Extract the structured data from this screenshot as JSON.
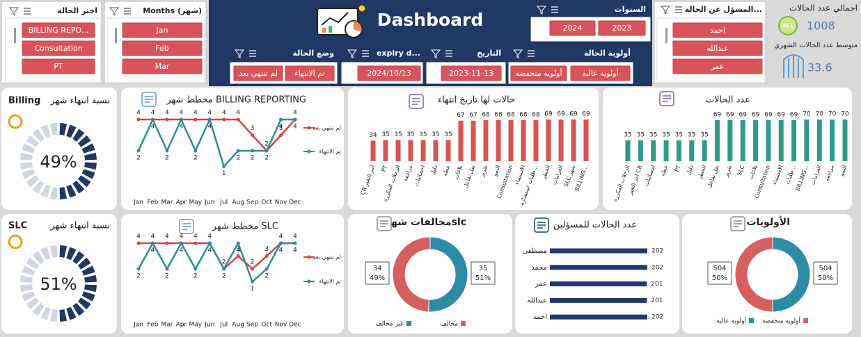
{
  "header": {
    "title": "Dashboard"
  },
  "slicers": [
    {
      "title": "اختر الحالة",
      "items": [
        "BILLING REPO...",
        "Consultation",
        "PT"
      ]
    },
    {
      "title": "Months (شهر)",
      "items": [
        "Jan",
        "Feb",
        "Mar"
      ]
    },
    {
      "title": "السنوات",
      "items": [
        "2024",
        "2023"
      ]
    },
    {
      "title": "وضع الحالة",
      "items": [
        "لم تنتهي بعد",
        "تم الانتهاء"
      ]
    },
    {
      "title": "expiry d...",
      "items": [
        "2024/10/13"
      ]
    },
    {
      "title": "التاريخ",
      "items": [
        "2023-11-13"
      ]
    },
    {
      "title": "أولوية الحالة",
      "items": [
        "أولوية منخفضة",
        "أولوية عالية"
      ]
    },
    {
      "title": "المسؤل عن الحالة...",
      "items": [
        "احمد",
        "عبدالله",
        "عمر"
      ]
    }
  ],
  "kpis": {
    "total_label": "اجمالي عدد الحالات",
    "total": 1008,
    "total_icon": "ALL",
    "average_label": "متوسط عدد الحالات الشهري",
    "average": 33.6
  },
  "chart_data": [
    {
      "type": "gauge",
      "title": "نسبة انتهاء شهر",
      "label": "Billing",
      "value": 49,
      "value_label": "49%",
      "color": "#1f3864"
    },
    {
      "type": "line",
      "title": "مخطط شهر BILLING REPORTING",
      "categories": [
        "Jan",
        "Feb",
        "Mar",
        "Apr",
        "May",
        "Jun",
        "Jul",
        "Aug",
        "Sep",
        "Oct",
        "Nov",
        "Dec"
      ],
      "series": [
        {
          "name": "لم تنتهي بعد",
          "color": "#d9433a",
          "values": [
            4,
            4,
            4,
            4,
            4,
            4,
            4,
            4,
            3,
            2,
            3,
            4
          ]
        },
        {
          "name": "تم الانتهاء",
          "color": "#2e8b9a",
          "values": [
            2,
            4,
            2,
            4,
            2,
            4,
            1,
            2,
            2,
            2,
            4,
            4
          ]
        }
      ]
    },
    {
      "type": "bar",
      "title": "حالات لها تاريخ انتهاء",
      "color": "#d9534f",
      "categories": [
        "CR امر التغير",
        "PT",
        "الرحلات المكررة",
        "مراجعة",
        "احصائيات",
        "دليل",
        "خطة",
        "بلاغات",
        "نقل تفاعل",
        "تقرير",
        "النمو",
        "Consultation",
        "الاستشاء",
        "طلبات استشارة...",
        "الخطر",
        "الغرامات",
        "SLC شهر",
        "BILLING..."
      ],
      "values": [
        34,
        35,
        35,
        35,
        35,
        35,
        35,
        67,
        67,
        68,
        68,
        68,
        68,
        68,
        69,
        69,
        69,
        69
      ]
    },
    {
      "type": "bar",
      "title": "عدد الحالات",
      "color": "#2e9a8a",
      "categories": [
        "الرحلات المكررة",
        "امر التغير CR",
        "احصائيات",
        "خطة",
        "PT",
        "دليل",
        "الخطر",
        "نقل تفاعل",
        "تقرير",
        "SLC",
        "بلاغات",
        "Consultation",
        "الاستشاء",
        "طلبات...",
        "BILLING...",
        "الغرامات",
        "مراجعة",
        "النمو"
      ],
      "values": [
        35,
        35,
        35,
        35,
        35,
        35,
        35,
        69,
        69,
        69,
        69,
        69,
        69,
        69,
        70,
        70,
        70,
        70
      ]
    },
    {
      "type": "gauge",
      "title": "نسبة انتهاء شهر",
      "label": "SLC",
      "value": 51,
      "value_label": "51%",
      "color": "#1f3864"
    },
    {
      "type": "line",
      "title": "مخطط شهر SLC",
      "categories": [
        "Jan",
        "Feb",
        "Mar",
        "Apr",
        "May",
        "Jun",
        "Jul",
        "Aug",
        "Sep",
        "Oct",
        "Nov",
        "Dec"
      ],
      "series": [
        {
          "name": "لم تنتهي بعد",
          "color": "#d9433a",
          "values": [
            4,
            4,
            4,
            4,
            4,
            4,
            2,
            3,
            2,
            3,
            4,
            4
          ]
        },
        {
          "name": "تم الانتهاء",
          "color": "#2e8b9a",
          "values": [
            2,
            4,
            2,
            4,
            2,
            4,
            2,
            4,
            1,
            2,
            4,
            4
          ]
        }
      ]
    },
    {
      "type": "pie",
      "title": "مخالفات شهرslc",
      "categories": [
        "مخالف",
        "غير مخالف"
      ],
      "values": [
        34,
        35
      ],
      "percent_labels": [
        "49%",
        "51%"
      ],
      "colors": [
        "#d65f5f",
        "#2e8ba6"
      ]
    },
    {
      "type": "hbar",
      "title": "عدد الحالات للمسؤلين",
      "color": "#1f3a6e",
      "categories": [
        "مصطفى",
        "محمد",
        "عمر",
        "عبدالله",
        "احمد"
      ],
      "values": [
        202,
        202,
        201,
        201,
        202
      ]
    },
    {
      "type": "pie",
      "title": "الأولويات",
      "categories": [
        "أولوية منخفضة",
        "أولوية عالية"
      ],
      "values": [
        504,
        504
      ],
      "percent_labels": [
        "50%",
        "50%"
      ],
      "colors": [
        "#d65f5f",
        "#2e8ba6"
      ]
    }
  ]
}
